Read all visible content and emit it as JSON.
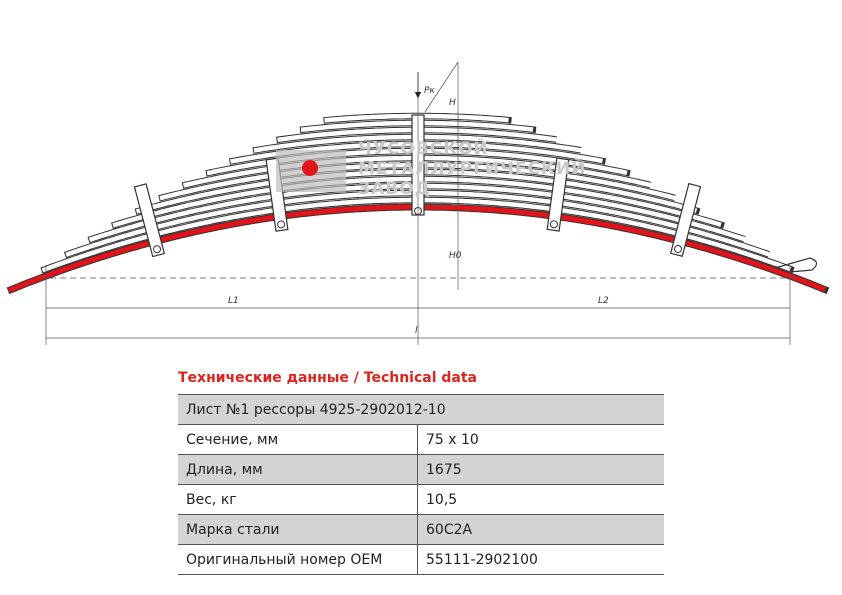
{
  "drawing": {
    "load_label": "Pк",
    "height_label": "H",
    "height0_label": "H0",
    "watermark": [
      "ЧУСОВСКОЙ",
      "МЕТАЛЛУРГИЧЕСКИЙ",
      "ЗАВОД"
    ],
    "left_length_label": "L1",
    "right_length_label": "L2",
    "length_label": "l"
  },
  "table": {
    "title": "Технические данные / Technical data",
    "header": "Лист №1 рессоры 4925-2902012-10",
    "rows": [
      [
        "Сечение, мм",
        "75 х 10"
      ],
      [
        "Длина, мм",
        "1675"
      ],
      [
        "Вес, кг",
        "10,5"
      ],
      [
        "Марка стали",
        "60С2А"
      ],
      [
        "Оригинальный номер OEM",
        "55111-2902100"
      ]
    ]
  }
}
